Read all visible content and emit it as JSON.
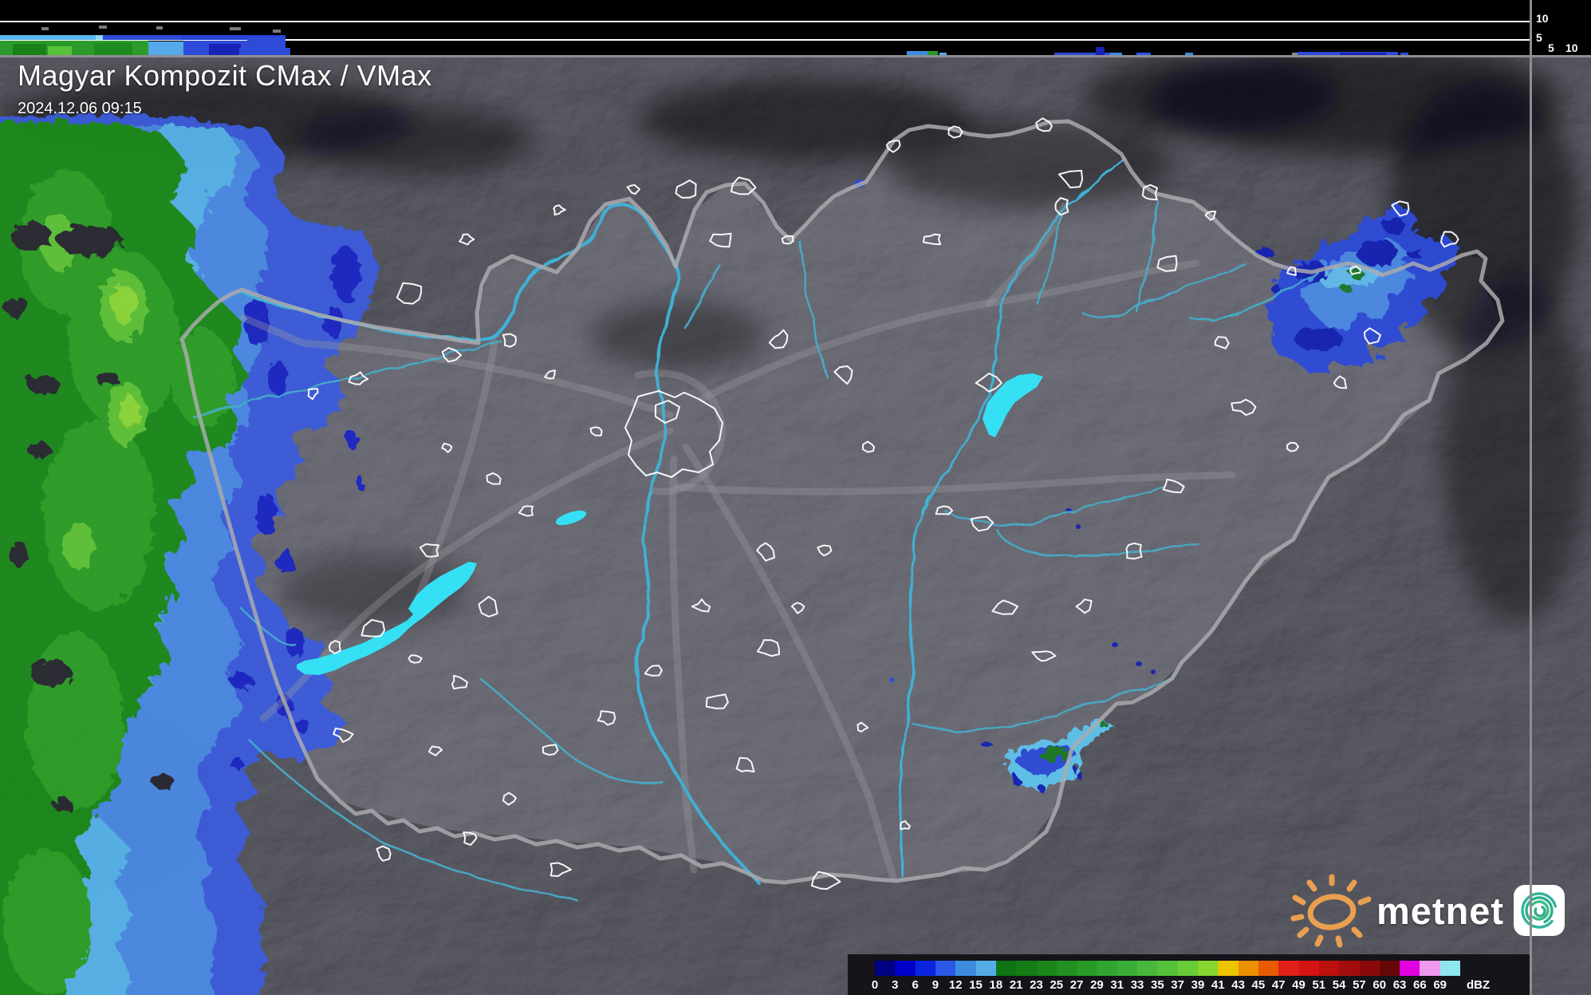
{
  "header": {
    "title": "Magyar Kompozit CMax / VMax",
    "timestamp": "2024.12.06 09:15"
  },
  "branding": {
    "name": "metnet"
  },
  "legend": {
    "unit": "dBZ",
    "ticks": [
      "0",
      "3",
      "6",
      "9",
      "12",
      "15",
      "18",
      "21",
      "23",
      "25",
      "27",
      "29",
      "31",
      "33",
      "35",
      "37",
      "39",
      "41",
      "43",
      "45",
      "47",
      "49",
      "51",
      "54",
      "57",
      "60",
      "63",
      "66",
      "69"
    ],
    "colors": [
      "#000082",
      "#0000C8",
      "#0B24E0",
      "#2A57E8",
      "#3D8CE0",
      "#55ADE8",
      "#0F7414",
      "#147C14",
      "#1A861A",
      "#219021",
      "#289A28",
      "#31A431",
      "#3BAE38",
      "#47B83C",
      "#55C23A",
      "#67CC36",
      "#86D631",
      "#ECC400",
      "#EC9000",
      "#E85A00",
      "#E02018",
      "#D41414",
      "#BC1010",
      "#A40D0D",
      "#8A0A0A",
      "#660707",
      "#E000E0",
      "#EE99EE",
      "#8FE6EE"
    ]
  },
  "profile_scales": {
    "top_km_labels": [
      "10",
      "5"
    ],
    "side_km_labels": [
      "5",
      "10"
    ]
  },
  "chart_data": {
    "type": "heatmap",
    "title": "Magyar Kompozit CMax / VMax",
    "timestamp": "2024.12.06 09:15",
    "unit": "dBZ",
    "scale_breaks_dbz": [
      0,
      3,
      6,
      9,
      12,
      15,
      18,
      21,
      23,
      25,
      27,
      29,
      31,
      33,
      35,
      37,
      39,
      41,
      43,
      45,
      47,
      49,
      51,
      54,
      57,
      60,
      63,
      66,
      69
    ],
    "height_axis_km": [
      5,
      10
    ],
    "regions": [
      {
        "name": "western-rain-band",
        "coverage": "west edge of map, full north-south extent",
        "max_dbz_range": "27-39 (green cores), edges 9-18 (blue)"
      },
      {
        "name": "northeast-rain-area",
        "coverage": "around 75-92% x, 22-38% y",
        "max_dbz_range": "0-15 (navy/blue), small 18-21 green patches"
      },
      {
        "name": "southeast-rain-cell",
        "coverage": "around 62-70% x, 72-80% y",
        "max_dbz_range": "up to 21-25 (dark green core)"
      },
      {
        "name": "echo-top-profiles",
        "coverage": "top strip (west-east) and right strip (north-south)",
        "detail": "echo tops mostly below 5 km"
      }
    ]
  },
  "profiles": {
    "top_rects": [
      [
        0,
        44,
        120,
        6,
        "#59B7EC"
      ],
      [
        120,
        44,
        9,
        6,
        "#8FD9F2"
      ],
      [
        129,
        44,
        98,
        6,
        "#2E4BD8"
      ],
      [
        227,
        44,
        131,
        6,
        "#2543D4"
      ],
      [
        310,
        46,
        48,
        5,
        "#2E4BD8"
      ],
      [
        0,
        51,
        186,
        18,
        "#2B9A2B"
      ],
      [
        16,
        55,
        42,
        14,
        "#1A801A"
      ],
      [
        60,
        58,
        30,
        11,
        "#57C23A"
      ],
      [
        118,
        54,
        48,
        15,
        "#1F8A1F"
      ],
      [
        186,
        52,
        44,
        17,
        "#55A9E8"
      ],
      [
        230,
        51,
        128,
        18,
        "#2E4BD8"
      ],
      [
        262,
        55,
        40,
        14,
        "#1822B4"
      ],
      [
        300,
        60,
        64,
        9,
        "#2E4BD8"
      ],
      [
        52,
        34,
        9,
        4,
        "#7A7A7E"
      ],
      [
        124,
        32,
        10,
        4,
        "#7A7A7E"
      ],
      [
        196,
        33,
        8,
        4,
        "#7A7A7E"
      ],
      [
        288,
        34,
        14,
        4,
        "#7A7A7E"
      ],
      [
        342,
        37,
        10,
        4,
        "#7A7A7E"
      ],
      [
        1137,
        64,
        26,
        5,
        "#3D8CE0"
      ],
      [
        1163,
        64,
        13,
        5,
        "#2B9A2B"
      ],
      [
        1178,
        66,
        9,
        3,
        "#55ADE8"
      ],
      [
        1322,
        66,
        82,
        3,
        "#2E4BD8"
      ],
      [
        1374,
        59,
        11,
        10,
        "#1822B4"
      ],
      [
        1392,
        66,
        15,
        3,
        "#3D8CE0"
      ],
      [
        1425,
        66,
        18,
        3,
        "#2A57E8"
      ],
      [
        1486,
        66,
        10,
        3,
        "#3D8CE0"
      ],
      [
        1620,
        66,
        8,
        3,
        "#8A8A8E"
      ],
      [
        1627,
        65,
        126,
        4,
        "#2E4BD8"
      ],
      [
        1680,
        66,
        58,
        3,
        "#1822B4"
      ],
      [
        1756,
        66,
        10,
        3,
        "#2E4BD8"
      ]
    ],
    "right_rows": [
      [
        36,
        22,
        10,
        0,
        6,
        0
      ],
      [
        58,
        34,
        20,
        0,
        4,
        0
      ],
      [
        92,
        30,
        21,
        0,
        0,
        1
      ],
      [
        122,
        52,
        22,
        12,
        5,
        0
      ],
      [
        174,
        40,
        22,
        6,
        0,
        0
      ],
      [
        214,
        60,
        22,
        0,
        8,
        1
      ],
      [
        274,
        40,
        22,
        0,
        4,
        0
      ],
      [
        314,
        54,
        22,
        10,
        6,
        0
      ],
      [
        368,
        62,
        21,
        16,
        8,
        0
      ],
      [
        430,
        44,
        22,
        10,
        0,
        1
      ],
      [
        474,
        56,
        22,
        0,
        10,
        0
      ],
      [
        530,
        44,
        22,
        12,
        6,
        1
      ],
      [
        574,
        56,
        22,
        14,
        10,
        0
      ],
      [
        630,
        44,
        22,
        8,
        0,
        1
      ],
      [
        674,
        16,
        22,
        6,
        8,
        0
      ],
      [
        690,
        58,
        22,
        0,
        10,
        0
      ],
      [
        748,
        40,
        22,
        10,
        6,
        0
      ],
      [
        788,
        50,
        22,
        6,
        0,
        1
      ],
      [
        838,
        40,
        22,
        0,
        8,
        0
      ],
      [
        878,
        46,
        22,
        10,
        6,
        0
      ],
      [
        924,
        44,
        22,
        14,
        0,
        0
      ],
      [
        968,
        50,
        22,
        16,
        8,
        0
      ],
      [
        1018,
        40,
        22,
        12,
        6,
        1
      ],
      [
        1058,
        50,
        22,
        16,
        0,
        0
      ],
      [
        1108,
        40,
        22,
        12,
        8,
        0
      ],
      [
        1148,
        27,
        21,
        8,
        0,
        0
      ]
    ],
    "colors": {
      "cyan": "#59B7EC",
      "green": "#259225",
      "navy": "#1B2FD0",
      "gray": "#8A8A8E"
    }
  }
}
